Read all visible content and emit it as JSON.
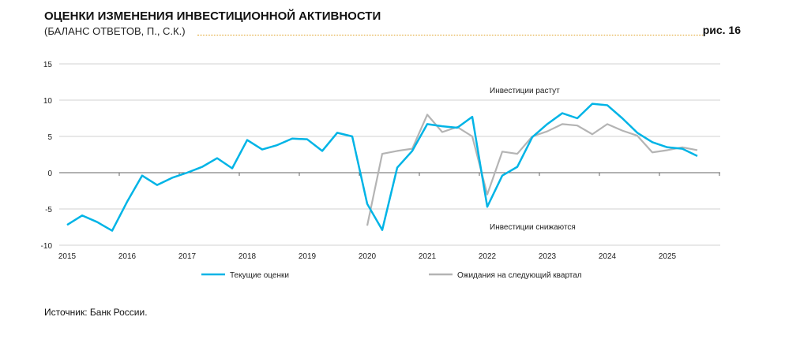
{
  "header": {
    "title": "ОЦЕНКИ ИЗМЕНЕНИЯ ИНВЕСТИЦИОННОЙ АКТИВНОСТИ",
    "subtitle": "(БАЛАНС ОТВЕТОВ, П., С.К.)",
    "figure": "рис. 16"
  },
  "footer": {
    "source": "Источник: Банк России."
  },
  "chart_data": {
    "type": "line",
    "title": "ОЦЕНКИ ИЗМЕНЕНИЯ ИНВЕСТИЦИОННОЙ АКТИВНОСТИ",
    "ylim": [
      -10,
      15
    ],
    "yticks": [
      "15",
      "10",
      "5",
      "0",
      "-5",
      "-10"
    ],
    "xticks": [
      "2015",
      "2016",
      "2017",
      "2018",
      "2019",
      "2020",
      "2021",
      "2022",
      "2023",
      "2024",
      "2025"
    ],
    "annotations": {
      "up": "Инвестиции растут",
      "down": "Инвестиции снижаются"
    },
    "legend_position": "bottom",
    "series": [
      {
        "name": "Текущие оценки",
        "color": "#00b4e6",
        "start": "2015Q1",
        "values": [
          -7.2,
          -5.9,
          -6.8,
          -8.0,
          -4.0,
          -0.4,
          -1.7,
          -0.7,
          0.0,
          0.8,
          2.0,
          0.6,
          4.5,
          3.2,
          3.8,
          4.7,
          4.6,
          3.0,
          5.5,
          5.0,
          -4.3,
          -7.9,
          0.7,
          3.0,
          6.7,
          6.4,
          6.2,
          7.7,
          -4.7,
          -0.4,
          0.8,
          4.9,
          6.7,
          8.2,
          7.5,
          9.5,
          9.3,
          7.5,
          5.5,
          4.2,
          3.5,
          3.3,
          2.3
        ]
      },
      {
        "name": "Ожидания на следующий квартал",
        "color": "#b4b4b4",
        "start": "2020Q1",
        "values": [
          -7.3,
          2.6,
          3.0,
          3.3,
          8.0,
          5.6,
          6.3,
          5.0,
          -3.0,
          2.9,
          2.6,
          5.0,
          5.7,
          6.7,
          6.5,
          5.3,
          6.7,
          5.8,
          5.1,
          2.8,
          3.1,
          3.5,
          3.1
        ]
      }
    ]
  }
}
